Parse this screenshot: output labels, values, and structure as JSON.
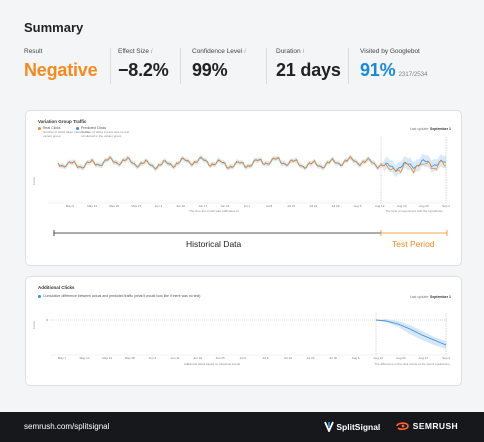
{
  "summary": {
    "title": "Summary"
  },
  "metrics": [
    {
      "label": "Result",
      "value": "Negative",
      "color": "#f58a1f",
      "info": false
    },
    {
      "label": "Effect Size",
      "value": "−8.2%",
      "color": "#222222",
      "info": true
    },
    {
      "label": "Confidence Level",
      "value": "99%",
      "color": "#222222",
      "info": true
    },
    {
      "label": "Duration",
      "value": "21 days",
      "color": "#222222",
      "info": true
    },
    {
      "label": "Visited by Googlebot",
      "value": "91%",
      "sub": "2317/2534",
      "color": "#1a8ad6",
      "info": false
    }
  ],
  "traffic_card": {
    "title": "Variation Group Traffic",
    "legend": [
      {
        "name": "Real Clicks",
        "desc": "Number of clicks taken place in the variant group",
        "color": "#f58a1f"
      },
      {
        "name": "Predicted Clicks",
        "desc": "Number of clicks if there was no test conducted in the variant group",
        "color": "#3b8fd9"
      }
    ],
    "updated_label": "Last update:",
    "updated_value": "September 1",
    "y_axis_label": "Clicks",
    "x_ticks": [
      "May 6",
      "May 13",
      "May 20",
      "May 27",
      "Jun 3",
      "Jun 10",
      "Jun 17",
      "Jun 24",
      "Jul 1",
      "Jul 8",
      "Jul 15",
      "Jul 22",
      "Jul 29",
      "Aug 5",
      "Aug 12",
      "Aug 19",
      "Aug 26",
      "Sep 2"
    ],
    "x_note": "The time the model was calibrated on",
    "test_note": "The time of experiment with the hypothesis",
    "historical_label": "Historical Data",
    "test_label": "Test Period"
  },
  "clicks_card": {
    "title": "Additional Clicks",
    "legend": [
      {
        "name": "Cumulative difference between actual and predicted traffic (what it would look like if there was no test)",
        "color": "#3b8fd9"
      }
    ],
    "updated_label": "Last update:",
    "updated_value": "September 1",
    "y_axis_label": "Clicks",
    "zero_label": "0",
    "x_ticks": [
      "May 7",
      "May 14",
      "May 21",
      "May 28",
      "Jun 4",
      "Jun 11",
      "Jun 18",
      "Jun 25",
      "Jul 2",
      "Jul 9",
      "Jul 16",
      "Jul 23",
      "Jul 30",
      "Aug 6",
      "Aug 13",
      "Aug 20",
      "Aug 27",
      "Sep 3"
    ],
    "x_note": "Additional clicks based on historical trends",
    "test_note": "The difference in the click trends of the test & predictions"
  },
  "colors": {
    "orange": "#f58a1f",
    "blue": "#1a8ad6",
    "footer": "#17181c"
  },
  "footer": {
    "url": "semrush.com/splitsignal",
    "brand1": "SplitSignal",
    "brand2": "SEMRUSH",
    "brand1_icon": "splitsignal-logo-icon",
    "brand2_icon": "semrush-logo-icon"
  }
}
